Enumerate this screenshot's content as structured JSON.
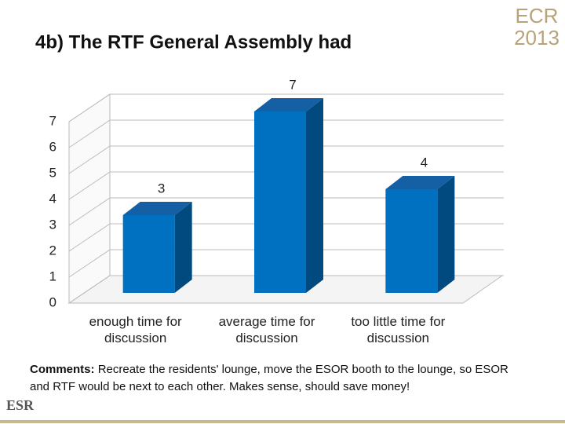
{
  "chart_data": {
    "type": "bar3d",
    "title": "4b) The RTF General Assembly had",
    "categories": [
      "enough time for discussion",
      "average time for discussion",
      "too little time for discussion"
    ],
    "values": [
      3,
      7,
      4
    ],
    "color": "#0070c0",
    "ylim": [
      0,
      7
    ],
    "yticks": [
      0,
      1,
      2,
      3,
      4,
      5,
      6,
      7
    ],
    "grid": true
  },
  "comment": {
    "label": "Comments:",
    "text": "Recreate the residents' lounge, move the ESOR booth to the lounge, so ESOR and RTF would be next to each other. Makes sense, should save money!"
  },
  "logos": {
    "ecr": "ECR",
    "year": "2013",
    "esr": "ESR"
  }
}
